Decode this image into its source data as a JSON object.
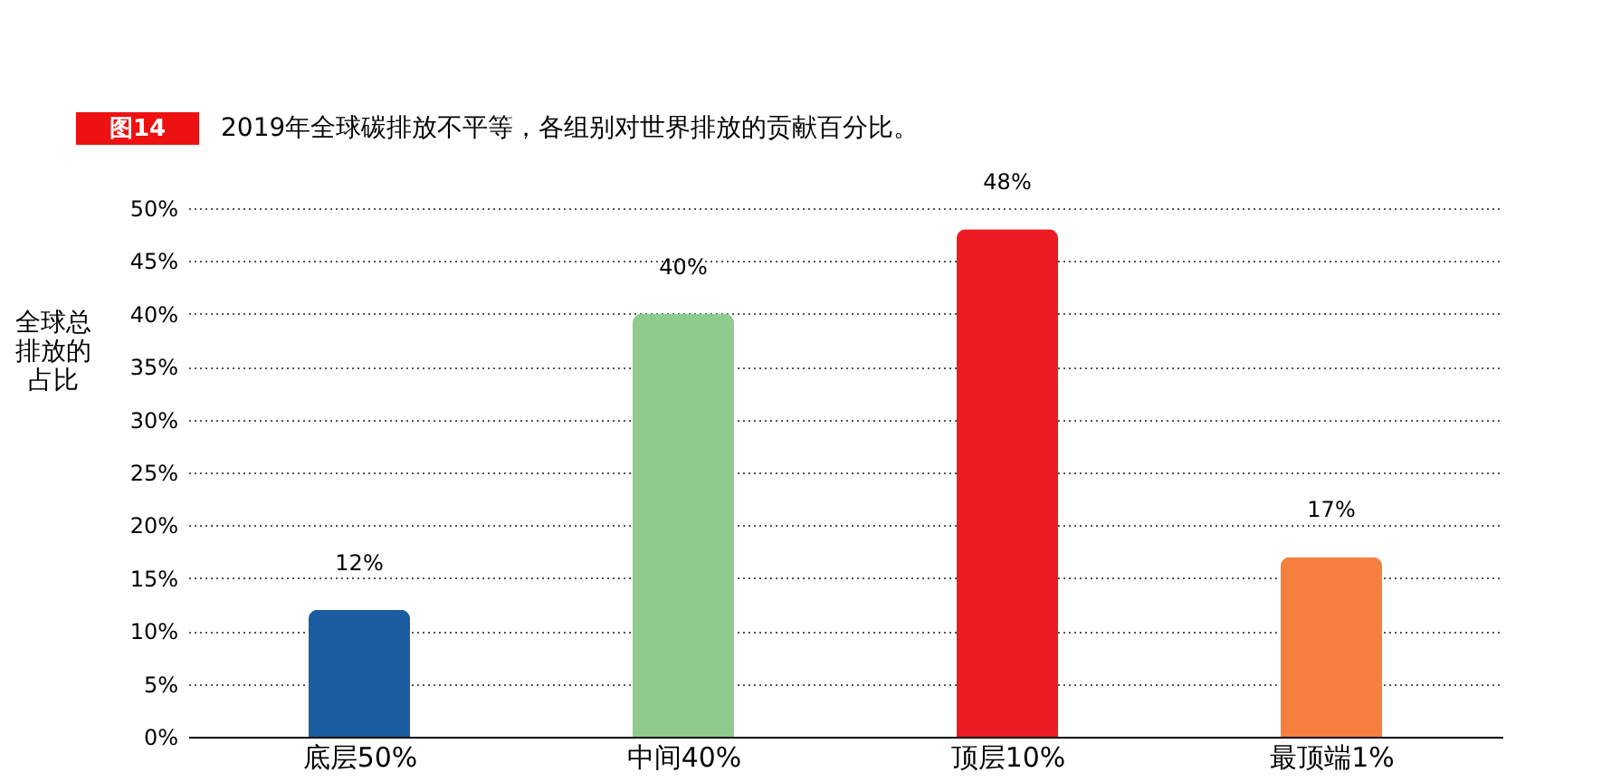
{
  "chart_data": {
    "type": "bar",
    "title": "2019年全球碳排放不平等，各组别对世界排放的贡献百分比。",
    "annotations": [
      "图14"
    ],
    "ylabel": "全球总排放的占比",
    "categories": [
      "底层50%",
      "中间40%",
      "顶层10%",
      "最顶端1%"
    ],
    "values": [
      12,
      40,
      48,
      17
    ],
    "colors": [
      "#1a5da0",
      "#8dcc8c",
      "#ec1c24",
      "#f58040"
    ],
    "value_labels": [
      "12%",
      "40%",
      "48%",
      "17%"
    ],
    "ylim": [
      0,
      50
    ],
    "yticks": [
      {
        "value": 0,
        "label": "0%"
      },
      {
        "value": 5,
        "label": "5%"
      },
      {
        "value": 10,
        "label": "10%"
      },
      {
        "value": 15,
        "label": "15%"
      },
      {
        "value": 20,
        "label": "20%"
      },
      {
        "value": 25,
        "label": "25%"
      },
      {
        "value": 30,
        "label": "30%"
      },
      {
        "value": 35,
        "label": "35%"
      },
      {
        "value": 40,
        "label": "40%"
      },
      {
        "value": 45,
        "label": "45%"
      },
      {
        "value": 50,
        "label": "50%"
      }
    ],
    "grid": "y"
  }
}
